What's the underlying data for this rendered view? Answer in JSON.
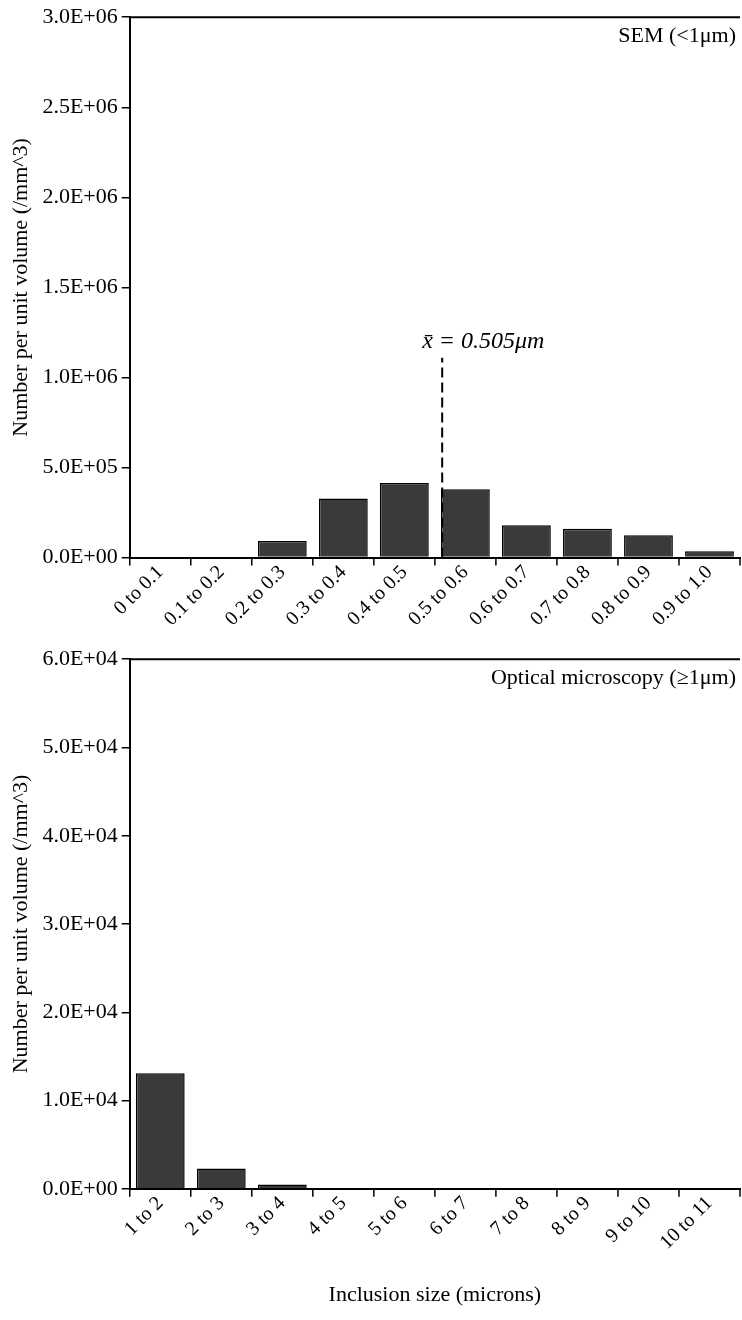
{
  "chart_data": [
    {
      "type": "bar",
      "ylabel": "Number per unit volume (/mm^3)",
      "annotations": [
        "SEM (<1μm)"
      ],
      "ref_lines": [
        {
          "axis": "x",
          "value": "0.5 to 0.6",
          "label": "x̄ = 0.505μm",
          "line_style": "dashed"
        }
      ],
      "categories": [
        "0 to 0.1",
        "0.1 to 0.2",
        "0.2 to 0.3",
        "0.3 to 0.4",
        "0.4 to 0.5",
        "0.5 to 0.6",
        "0.6 to 0.7",
        "0.7 to 0.8",
        "0.8 to 0.9",
        "0.9 to 1.0"
      ],
      "values": [
        0,
        0,
        92000,
        328000,
        414000,
        379000,
        180000,
        160000,
        124000,
        35000
      ],
      "color": "#3a3a3a",
      "ylim": [
        0,
        3000000
      ],
      "yticks": [
        {
          "value": 0,
          "label": "0.0E+00"
        },
        {
          "value": 500000,
          "label": "5.0E+05"
        },
        {
          "value": 1000000,
          "label": "1.0E+06"
        },
        {
          "value": 1500000,
          "label": "1.5E+06"
        },
        {
          "value": 2000000,
          "label": "2.0E+06"
        },
        {
          "value": 2500000,
          "label": "2.5E+06"
        },
        {
          "value": 3000000,
          "label": "3.0E+06"
        }
      ],
      "grid": false,
      "legend": false
    },
    {
      "type": "bar",
      "ylabel": "Number per unit volume (/mm^3)",
      "xlabel": "Inclusion size (microns)",
      "annotations": [
        "Optical microscopy (≥1μm)"
      ],
      "categories": [
        "1 to 2",
        "2 to 3",
        "3 to 4",
        "4 to 5",
        "5 to 6",
        "6 to 7",
        "7 to 8",
        "8 to 9",
        "9 to 10",
        "10 to 11"
      ],
      "values": [
        13100,
        2300,
        500,
        0,
        0,
        0,
        0,
        0,
        0,
        0
      ],
      "color": "#3a3a3a",
      "ylim": [
        0,
        60000
      ],
      "yticks": [
        {
          "value": 0,
          "label": "0.0E+00"
        },
        {
          "value": 10000,
          "label": "1.0E+04"
        },
        {
          "value": 20000,
          "label": "2.0E+04"
        },
        {
          "value": 30000,
          "label": "3.0E+04"
        },
        {
          "value": 40000,
          "label": "4.0E+04"
        },
        {
          "value": 50000,
          "label": "5.0E+04"
        },
        {
          "value": 60000,
          "label": "6.0E+04"
        }
      ],
      "grid": false,
      "legend": false
    }
  ]
}
